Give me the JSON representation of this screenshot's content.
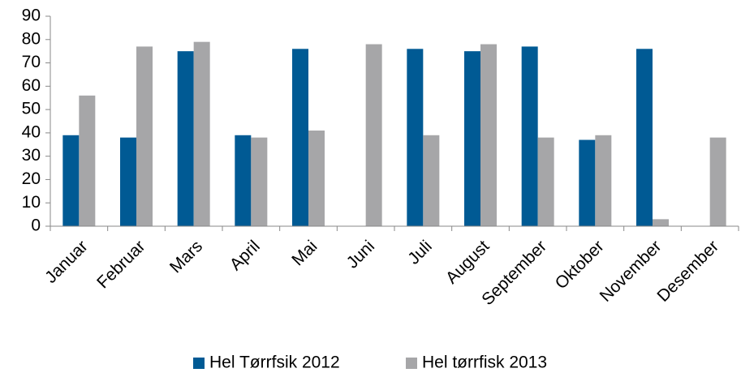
{
  "chart_data": {
    "type": "bar",
    "categories": [
      "Januar",
      "Februar",
      "Mars",
      "April",
      "Mai",
      "Juni",
      "Juli",
      "August",
      "September",
      "Oktober",
      "November",
      "Desember"
    ],
    "series": [
      {
        "name": "Hel Tørrfsik 2012",
        "color": "#005a94",
        "values": [
          39,
          38,
          75,
          39,
          76,
          null,
          76,
          75,
          77,
          37,
          76,
          null
        ]
      },
      {
        "name": "Hel tørrfisk 2013",
        "color": "#a6a6a8",
        "values": [
          56,
          77,
          79,
          38,
          41,
          78,
          39,
          78,
          38,
          39,
          3,
          38
        ]
      }
    ],
    "ylim": [
      0,
      90
    ],
    "yticks": [
      0,
      10,
      20,
      30,
      40,
      50,
      60,
      70,
      80,
      90
    ],
    "grid": false,
    "legend": "bottom"
  }
}
